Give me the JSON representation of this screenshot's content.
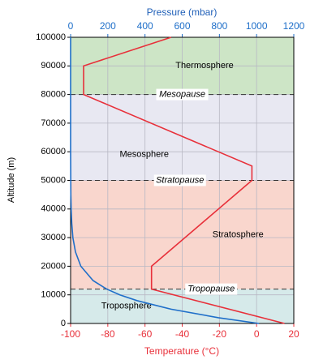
{
  "chart_data": {
    "type": "line",
    "x2label": "Pressure (mbar)",
    "xlabel": "Temperature (°C)",
    "ylabel": "Altitude (m)",
    "xlim": [
      -100,
      20
    ],
    "xticks": [
      -100,
      -80,
      -60,
      -40,
      -20,
      0,
      20
    ],
    "x2lim": [
      0,
      1200
    ],
    "x2ticks": [
      0,
      200,
      400,
      600,
      800,
      1000,
      1200
    ],
    "ylim": [
      0,
      100000
    ],
    "yticks": [
      0,
      10000,
      20000,
      30000,
      40000,
      50000,
      60000,
      70000,
      80000,
      90000,
      100000
    ],
    "grid": true,
    "regions": [
      {
        "label": "Troposphere",
        "from": 0,
        "to": 12000,
        "color": "#d6eaea"
      },
      {
        "label": "Stratosphere",
        "from": 12000,
        "to": 50000,
        "color": "#f9d6cd"
      },
      {
        "label": "Mesosphere",
        "from": 50000,
        "to": 80000,
        "color": "#e8e8f2"
      },
      {
        "label": "Thermosphere",
        "from": 80000,
        "to": 100000,
        "color": "#cde5c6"
      }
    ],
    "boundaries": [
      {
        "label": "Tropopause",
        "value": 12000
      },
      {
        "label": "Stratopause",
        "value": 50000
      },
      {
        "label": "Mesopause",
        "value": 80000
      }
    ],
    "series": [
      {
        "axis": "x",
        "color": "#e8303a",
        "x": [
          15,
          -56.5,
          -56.5,
          -2.5,
          -2.5,
          -93,
          -93,
          -46
        ],
        "values": [
          0,
          12000,
          20000,
          50000,
          55000,
          80000,
          90000,
          100000
        ]
      },
      {
        "axis": "x2",
        "color": "#1f6fc9",
        "x": [
          1013,
          795,
          540,
          357,
          265,
          194,
          121,
          55,
          26,
          12,
          6,
          3,
          1.5,
          0.8,
          0.2,
          0.05,
          0.01,
          0
        ],
        "values": [
          0,
          2000,
          5000,
          8000,
          10000,
          12000,
          15000,
          20000,
          25000,
          30000,
          35000,
          40000,
          45000,
          50000,
          60000,
          70000,
          80000,
          100000
        ]
      }
    ]
  }
}
